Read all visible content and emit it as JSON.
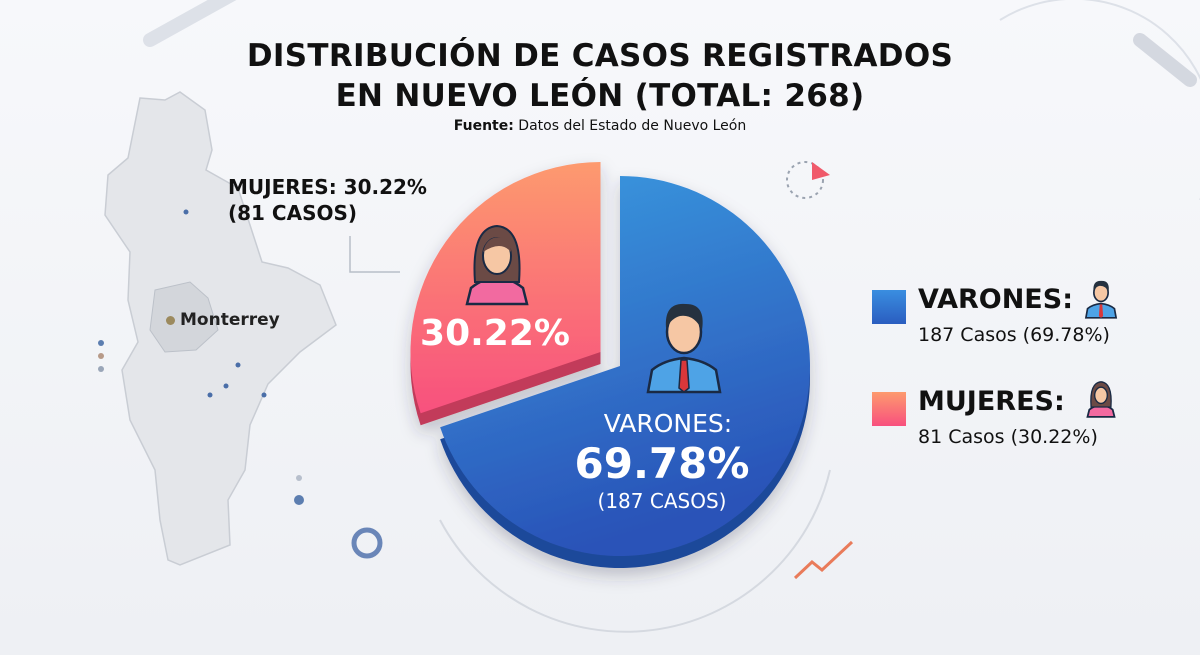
{
  "title_line1": "DISTRIBUCIÓN DE CASOS REGISTRADOS",
  "title_line2": "EN NUEVO LEÓN (TOTAL: 268)",
  "source_label": "Fuente:",
  "source_text": "Datos del Estado de Nuevo León",
  "map": {
    "city_label": "Monterrey"
  },
  "callout": {
    "line1": "MUJERES: 30.22%",
    "line2": "(81 CASOS)"
  },
  "chart_data": {
    "type": "pie",
    "title": "DISTRIBUCIÓN DE CASOS REGISTRADOS EN NUEVO LEÓN (TOTAL: 268)",
    "total": 268,
    "slices": [
      {
        "name": "VARONES",
        "value": 187,
        "percent": 69.78,
        "color": "#2f6fd0",
        "label_name": "VARONES:",
        "label_pct": "69.78%",
        "label_cases": "(187 CASOS)",
        "icon": "man-icon"
      },
      {
        "name": "MUJERES",
        "value": 81,
        "percent": 30.22,
        "color": "#fb6f85",
        "label_pct": "30.22%",
        "icon": "woman-icon",
        "exploded": true
      }
    ],
    "legend": [
      {
        "name": "VARONES:",
        "value": "187 Casos (69.78%)",
        "color": "#2f6fd0",
        "icon": "man-icon"
      },
      {
        "name": "MUJERES:",
        "value": "81 Casos (30.22%)",
        "color": "#fb7d7a",
        "icon": "woman-icon"
      }
    ],
    "legend_position": "right"
  }
}
